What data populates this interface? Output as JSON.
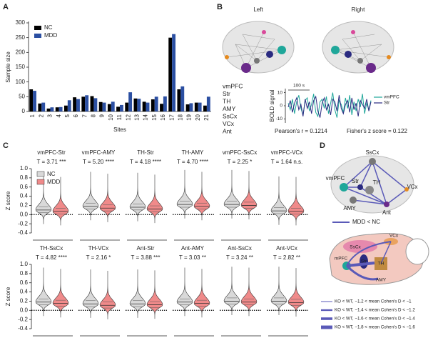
{
  "panel_labels": [
    "A",
    "B",
    "C",
    "D"
  ],
  "brain_views": [
    "Left",
    "Right"
  ],
  "regions": [
    {
      "name": "vmPFC",
      "color": "#1fa79a"
    },
    {
      "name": "Str",
      "color": "#2a2a80"
    },
    {
      "name": "TH",
      "color": "#b5652a"
    },
    {
      "name": "AMY",
      "color": "#777777"
    },
    {
      "name": "SsCx",
      "color": "#d9499a"
    },
    {
      "name": "VCx",
      "color": "#e58a1f"
    },
    {
      "name": "Ant",
      "color": "#6a2a8a"
    }
  ],
  "chart_data": [
    {
      "type": "bar",
      "xlabel": "Sites",
      "ylabel": "Sample size",
      "categories": [
        "1",
        "2",
        "3",
        "4",
        "5",
        "6",
        "7",
        "8",
        "9",
        "10",
        "11",
        "12",
        "13",
        "14",
        "15",
        "16",
        "17",
        "18",
        "19",
        "20",
        "21"
      ],
      "series": [
        {
          "name": "NC",
          "color": "#000000",
          "values": [
            75,
            27,
            10,
            14,
            20,
            48,
            50,
            52,
            32,
            25,
            16,
            30,
            44,
            33,
            41,
            26,
            250,
            75,
            24,
            30,
            20
          ]
        },
        {
          "name": "MDD",
          "color": "#2b4fa2",
          "values": [
            70,
            30,
            14,
            15,
            38,
            42,
            55,
            45,
            30,
            33,
            22,
            65,
            43,
            30,
            50,
            51,
            262,
            85,
            28,
            30,
            50
          ]
        }
      ],
      "ylim": [
        0,
        300
      ],
      "yticks": [
        0,
        50,
        100,
        150,
        200,
        250,
        300
      ]
    },
    {
      "type": "line",
      "ylabel": "BOLD signal",
      "scale_label": "100 s",
      "series": [
        {
          "name": "vmPFC",
          "color": "#1fa79a",
          "values": [
            2,
            -3,
            5,
            -6,
            3,
            8,
            -2,
            -7,
            4,
            6,
            -4,
            1,
            9,
            -5,
            -8,
            3,
            5,
            -2,
            7,
            -6,
            2,
            10,
            -3,
            -9,
            4,
            1,
            -5,
            6,
            -2,
            8,
            -7,
            3,
            -4,
            5,
            -1,
            9,
            -6,
            2,
            -3,
            4
          ]
        },
        {
          "name": "Str",
          "color": "#2a2a80",
          "values": [
            -1,
            4,
            -5,
            2,
            6,
            -3,
            1,
            -8,
            5,
            -2,
            3,
            -6,
            4,
            7,
            -4,
            -9,
            2,
            6,
            -3,
            1,
            -7,
            5,
            3,
            -4,
            8,
            -2,
            -6,
            1,
            4,
            -5,
            6,
            -3,
            2,
            -8,
            4,
            1,
            -2,
            5,
            -4,
            3
          ]
        }
      ],
      "ylim": [
        -13,
        13
      ],
      "yticks": [
        -10,
        0,
        10
      ],
      "annotations": [
        "Pearson's r = 0.1214",
        "Fisher's z score = 0.122"
      ]
    },
    {
      "type": "violin",
      "ylabel": "Z score",
      "ylim": [
        -0.4,
        1.0
      ],
      "yticks": [
        -0.4,
        -0.2,
        {
          "value": 0,
          "label": "0.0"
        },
        0.2,
        0.4,
        0.6,
        0.8,
        {
          "value": 1,
          "label": "1.0"
        }
      ],
      "series": [
        {
          "name": "NC",
          "color": "#d9d9d9"
        },
        {
          "name": "MDD",
          "color": "#f08a8a"
        }
      ],
      "panels": [
        {
          "title": "vmPFC-Str",
          "stat": "T = 3.71 ***",
          "values": [
            0.1,
            0.07
          ]
        },
        {
          "title": "vmPFC-AMY",
          "stat": "T = 5.20 ****",
          "values": [
            0.18,
            0.14
          ]
        },
        {
          "title": "TH-Str",
          "stat": "T = 4.18 ****",
          "values": [
            0.16,
            0.12
          ]
        },
        {
          "title": "TH-AMY",
          "stat": "T = 4.70 ****",
          "values": [
            0.22,
            0.18
          ]
        },
        {
          "title": "vmPFC-SsCx",
          "stat": "T = 2.25 *",
          "values": [
            0.22,
            0.2
          ]
        },
        {
          "title": "vmPFC-VCx",
          "stat": "T = 1.64 n.s.",
          "values": [
            0.08,
            0.07
          ]
        },
        {
          "title": "TH-SsCx",
          "stat": "T = 4.82 ****",
          "values": [
            0.18,
            0.15
          ]
        },
        {
          "title": "TH-VCx",
          "stat": "T = 2.16 *",
          "values": [
            0.14,
            0.11
          ]
        },
        {
          "title": "Ant-Str",
          "stat": "T = 3.88 ***",
          "values": [
            0.14,
            0.12
          ]
        },
        {
          "title": "Ant-AMY",
          "stat": "T = 3.03 **",
          "values": [
            0.18,
            0.15
          ]
        },
        {
          "title": "Ant-SsCx",
          "stat": "T = 3.24 **",
          "values": [
            0.2,
            0.18
          ]
        },
        {
          "title": "Ant-VCx",
          "stat": "T = 2.82 **",
          "values": [
            0.2,
            0.17
          ]
        }
      ]
    }
  ],
  "panel_d": {
    "nodes": [
      "vmPFC",
      "SsCx",
      "Str",
      "TH",
      "VCx",
      "AMY",
      "Ant"
    ],
    "legend": "MDD < NC",
    "mouse_labels": [
      "SsCx",
      "VCx",
      "mPFC",
      "TH",
      "Str",
      "AMY"
    ],
    "effect_legend": [
      "KO < WT, −1.2 < mean Cohen's D < −1",
      "KO < WT, −1.4 < mean Cohen's D < −1.2",
      "KO < WT, −1.6 < mean Cohen's D < −1.4",
      "KO < WT, −1.8 < mean Cohen's D < −1.6"
    ]
  }
}
